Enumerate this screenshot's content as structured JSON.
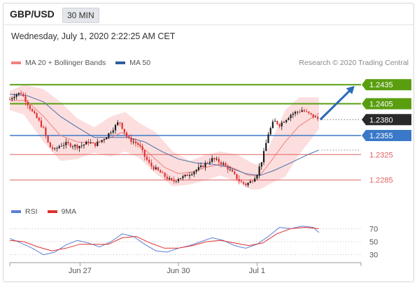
{
  "header": {
    "symbol": "GBP/USD",
    "timeframe": "30 MIN"
  },
  "subheader": {
    "datetime": "Wednesday, July 1, 2020 2:22:25 AM CET"
  },
  "legend": {
    "main": [
      {
        "label": "MA 20 + Bollinger Bands",
        "color": "#f08080"
      },
      {
        "label": "MA 50",
        "color": "#2f5f9f"
      }
    ],
    "rsi": [
      {
        "label": "RSI",
        "color": "#5b7fd6"
      },
      {
        "label": "9MA",
        "color": "#e03030"
      }
    ]
  },
  "copyright": "Research © 2020 Trading Central",
  "colors": {
    "up": "#1a1a1a",
    "down": "#e03030",
    "band": "#fbd0d0",
    "ma50": "#4a6ea8",
    "resistance": "#5a9e10",
    "pivot": "#3a78c8",
    "support": "#e06060",
    "arrow": "#2a6ab8"
  },
  "chart_data": [
    {
      "type": "candlestick",
      "x_ticks": [
        "Jun 27",
        "Jun 30",
        "Jul 1"
      ],
      "ylim": [
        1.2255,
        1.2455
      ],
      "levels": [
        {
          "value": 1.2435,
          "label": "1.2435",
          "kind": "resistance"
        },
        {
          "value": 1.2405,
          "label": "1.2405",
          "kind": "resistance"
        },
        {
          "value": 1.238,
          "label": "1.2380",
          "kind": "last"
        },
        {
          "value": 1.2355,
          "label": "1.2355",
          "kind": "pivot"
        },
        {
          "value": 1.2325,
          "label": "1.2325",
          "kind": "support"
        },
        {
          "value": 1.2285,
          "label": "1.2285",
          "kind": "support"
        }
      ],
      "close_path": [
        [
          0,
          1.2412
        ],
        [
          4,
          1.242
        ],
        [
          8,
          1.2422
        ],
        [
          12,
          1.2408
        ],
        [
          16,
          1.2392
        ],
        [
          20,
          1.238
        ],
        [
          24,
          1.2365
        ],
        [
          28,
          1.2338
        ],
        [
          32,
          1.2332
        ],
        [
          36,
          1.234
        ],
        [
          40,
          1.2342
        ],
        [
          44,
          1.234
        ],
        [
          48,
          1.2338
        ],
        [
          52,
          1.234
        ],
        [
          56,
          1.2345
        ],
        [
          60,
          1.234
        ],
        [
          64,
          1.2345
        ],
        [
          68,
          1.2352
        ],
        [
          72,
          1.2362
        ],
        [
          76,
          1.2372
        ],
        [
          78,
          1.2378
        ],
        [
          80,
          1.2368
        ],
        [
          84,
          1.235
        ],
        [
          88,
          1.2345
        ],
        [
          92,
          1.234
        ],
        [
          96,
          1.2322
        ],
        [
          100,
          1.2308
        ],
        [
          104,
          1.2302
        ],
        [
          108,
          1.2295
        ],
        [
          112,
          1.2288
        ],
        [
          116,
          1.2282
        ],
        [
          120,
          1.2288
        ],
        [
          124,
          1.229
        ],
        [
          128,
          1.2295
        ],
        [
          132,
          1.23
        ],
        [
          136,
          1.2305
        ],
        [
          140,
          1.2312
        ],
        [
          144,
          1.2318
        ],
        [
          148,
          1.2315
        ],
        [
          152,
          1.231
        ],
        [
          156,
          1.2302
        ],
        [
          160,
          1.2292
        ],
        [
          164,
          1.2282
        ],
        [
          168,
          1.2278
        ],
        [
          172,
          1.2283
        ],
        [
          176,
          1.2295
        ],
        [
          180,
          1.232
        ],
        [
          184,
          1.2358
        ],
        [
          188,
          1.2378
        ],
        [
          192,
          1.2372
        ],
        [
          196,
          1.238
        ],
        [
          200,
          1.2388
        ],
        [
          204,
          1.2392
        ],
        [
          208,
          1.2395
        ],
        [
          212,
          1.239
        ],
        [
          216,
          1.2385
        ],
        [
          220,
          1.238
        ]
      ],
      "ma20_path": [
        [
          0,
          1.241
        ],
        [
          12,
          1.241
        ],
        [
          24,
          1.2385
        ],
        [
          36,
          1.2355
        ],
        [
          48,
          1.2345
        ],
        [
          60,
          1.2343
        ],
        [
          72,
          1.2352
        ],
        [
          80,
          1.236
        ],
        [
          90,
          1.2345
        ],
        [
          100,
          1.2325
        ],
        [
          110,
          1.2305
        ],
        [
          120,
          1.2295
        ],
        [
          130,
          1.2298
        ],
        [
          140,
          1.2305
        ],
        [
          150,
          1.231
        ],
        [
          160,
          1.2303
        ],
        [
          170,
          1.2292
        ],
        [
          178,
          1.2292
        ],
        [
          186,
          1.2315
        ],
        [
          196,
          1.2345
        ],
        [
          206,
          1.237
        ],
        [
          220,
          1.239
        ]
      ],
      "band_upper": [
        [
          0,
          1.2425
        ],
        [
          10,
          1.2435
        ],
        [
          24,
          1.2428
        ],
        [
          36,
          1.2408
        ],
        [
          48,
          1.2382
        ],
        [
          60,
          1.2368
        ],
        [
          72,
          1.2385
        ],
        [
          82,
          1.2392
        ],
        [
          92,
          1.2375
        ],
        [
          104,
          1.236
        ],
        [
          116,
          1.233
        ],
        [
          128,
          1.2315
        ],
        [
          140,
          1.2325
        ],
        [
          150,
          1.233
        ],
        [
          162,
          1.2325
        ],
        [
          172,
          1.2312
        ],
        [
          178,
          1.2308
        ],
        [
          186,
          1.2345
        ],
        [
          196,
          1.2395
        ],
        [
          206,
          1.2415
        ],
        [
          220,
          1.2415
        ]
      ],
      "band_lower": [
        [
          0,
          1.2395
        ],
        [
          10,
          1.2388
        ],
        [
          24,
          1.2345
        ],
        [
          36,
          1.2315
        ],
        [
          48,
          1.2318
        ],
        [
          60,
          1.2328
        ],
        [
          72,
          1.2322
        ],
        [
          82,
          1.233
        ],
        [
          92,
          1.232
        ],
        [
          104,
          1.2295
        ],
        [
          116,
          1.2275
        ],
        [
          128,
          1.2278
        ],
        [
          140,
          1.2285
        ],
        [
          150,
          1.2292
        ],
        [
          162,
          1.2282
        ],
        [
          172,
          1.227
        ],
        [
          178,
          1.227
        ],
        [
          186,
          1.228
        ],
        [
          196,
          1.229
        ],
        [
          206,
          1.2325
        ],
        [
          220,
          1.2365
        ]
      ],
      "ma50_path": [
        [
          0,
          1.242
        ],
        [
          12,
          1.2418
        ],
        [
          24,
          1.2408
        ],
        [
          36,
          1.2385
        ],
        [
          48,
          1.2368
        ],
        [
          60,
          1.2352
        ],
        [
          72,
          1.2352
        ],
        [
          84,
          1.2352
        ],
        [
          96,
          1.2345
        ],
        [
          108,
          1.233
        ],
        [
          120,
          1.2318
        ],
        [
          132,
          1.2312
        ],
        [
          144,
          1.231
        ],
        [
          156,
          1.2305
        ],
        [
          168,
          1.2295
        ],
        [
          178,
          1.2292
        ],
        [
          188,
          1.23
        ],
        [
          200,
          1.2312
        ],
        [
          212,
          1.2325
        ],
        [
          220,
          1.2332
        ]
      ],
      "projection": {
        "from": [
          220,
          1.238
        ],
        "to": [
          244,
          1.243
        ]
      },
      "x_domain": [
        0,
        250
      ]
    },
    {
      "type": "line",
      "title": "RSI",
      "y_ticks": [
        70,
        50,
        30
      ],
      "ylim": [
        20,
        80
      ],
      "series": [
        {
          "name": "RSI",
          "values": [
            [
              0,
              55
            ],
            [
              8,
              48
            ],
            [
              16,
              40
            ],
            [
              24,
              30
            ],
            [
              32,
              34
            ],
            [
              40,
              45
            ],
            [
              48,
              52
            ],
            [
              56,
              48
            ],
            [
              64,
              42
            ],
            [
              72,
              50
            ],
            [
              80,
              62
            ],
            [
              88,
              58
            ],
            [
              96,
              46
            ],
            [
              104,
              36
            ],
            [
              112,
              34
            ],
            [
              120,
              40
            ],
            [
              128,
              44
            ],
            [
              136,
              50
            ],
            [
              144,
              56
            ],
            [
              152,
              52
            ],
            [
              160,
              44
            ],
            [
              168,
              40
            ],
            [
              176,
              46
            ],
            [
              184,
              58
            ],
            [
              192,
              72
            ],
            [
              200,
              70
            ],
            [
              208,
              74
            ],
            [
              216,
              72
            ],
            [
              220,
              64
            ]
          ]
        },
        {
          "name": "9MA",
          "values": [
            [
              0,
              52
            ],
            [
              10,
              50
            ],
            [
              20,
              42
            ],
            [
              30,
              36
            ],
            [
              40,
              40
            ],
            [
              50,
              46
            ],
            [
              60,
              46
            ],
            [
              70,
              46
            ],
            [
              80,
              56
            ],
            [
              90,
              58
            ],
            [
              100,
              48
            ],
            [
              110,
              40
            ],
            [
              120,
              40
            ],
            [
              130,
              44
            ],
            [
              140,
              50
            ],
            [
              150,
              52
            ],
            [
              160,
              48
            ],
            [
              170,
              44
            ],
            [
              180,
              48
            ],
            [
              190,
              62
            ],
            [
              200,
              70
            ],
            [
              210,
              72
            ],
            [
              220,
              70
            ]
          ]
        }
      ]
    }
  ]
}
